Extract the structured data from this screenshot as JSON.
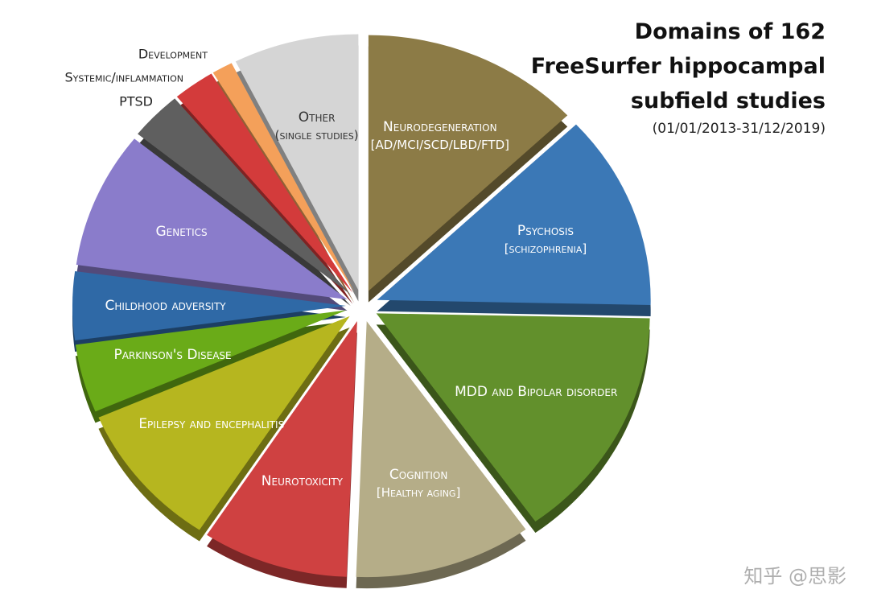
{
  "chart_data": {
    "type": "pie",
    "title": "Domains of 162 FreeSurfer hippocampal subfield studies",
    "subtitle": "(01/01/2013-31/12/2019)",
    "categories": [
      "Neurodegeneration",
      "Psychosis",
      "MDD and Bipolar disorder",
      "Cognition",
      "Neurotoxicity",
      "Epilepsy and encephalitis",
      "Parkinson's Disease",
      "Childhood adversity",
      "Genetics",
      "PTSD",
      "Systemic/inflammation",
      "Development",
      "Other"
    ],
    "sublabels": [
      "[AD/MCI/SCD/LBD/FTD]",
      "[schizophrenia]",
      null,
      "[Healthy aging]",
      null,
      null,
      null,
      null,
      null,
      null,
      null,
      null,
      "(single studies)"
    ],
    "values": [
      21,
      20,
      24,
      17,
      14,
      15,
      7,
      7,
      14,
      5,
      4,
      2,
      12
    ],
    "colors": [
      "#8c7b46",
      "#3b78b6",
      "#62902c",
      "#b5ad88",
      "#cf4141",
      "#b6b61f",
      "#6aab18",
      "#2f69a6",
      "#8a7ccb",
      "#5f5f5f",
      "#d33b3b",
      "#f4a05a",
      "#d5d5d5"
    ]
  },
  "watermark": "知乎 @思影"
}
